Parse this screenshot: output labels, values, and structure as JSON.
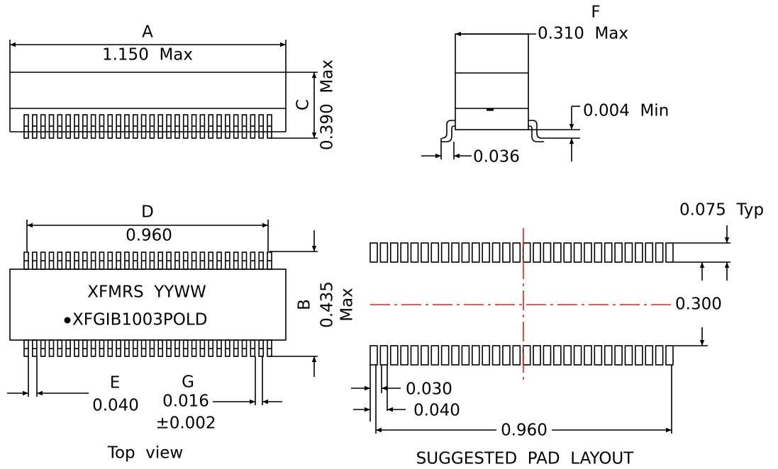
{
  "side_view": {
    "a_label": "A",
    "a_value": "1.150  Max",
    "c_label": "C",
    "c_value": "0.390  Max"
  },
  "end_view": {
    "f_label": "F",
    "f_value": "0.310  Max",
    "standoff": "0.004  Min",
    "lead": "0.036"
  },
  "top_view": {
    "d_label": "D",
    "d_value": "0.960",
    "marking_1": "XFMRS  YYWW",
    "marking_2": "XFGIB1003POLD",
    "b_label": "B",
    "b_value": "0.435",
    "b_unit": "Max",
    "e_label": "E",
    "e_value": "0.040",
    "g_label": "G",
    "g_value": "0.016",
    "g_tolerance": "±0.002",
    "caption": "Top  view"
  },
  "pad_layout": {
    "pad_length": "0.075  Typ",
    "row_spacing": "0.300",
    "pad_width": "0.030",
    "pitch": "0.040",
    "span": "0.960",
    "caption": "SUGGESTED  PAD  LAYOUT"
  }
}
